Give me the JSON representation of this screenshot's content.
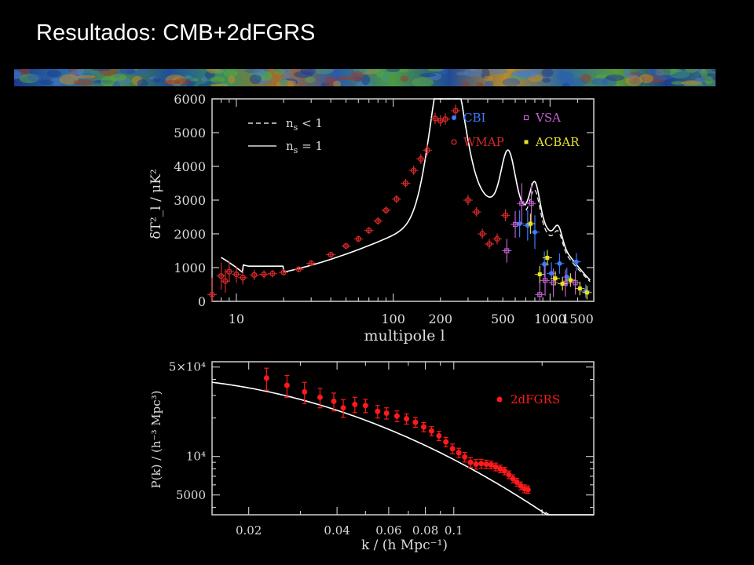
{
  "slide": {
    "title": "Resultados: CMB+2dFGRS"
  },
  "colors": {
    "background": "#000000",
    "axis": "#cfcfcf",
    "model": "#ffffff",
    "cbi": "#3b7bff",
    "wmap": "#d62a2a",
    "vsa": "#c060d0",
    "acbar": "#e8e02a",
    "twodf": "#ff1a1a"
  },
  "chart_data": [
    {
      "type": "scatter",
      "xscale": "log",
      "xlabel": "multipole l",
      "ylabel": "δT²_l / μK²",
      "ylim": [
        0,
        6000
      ],
      "xlim": [
        7,
        1900
      ],
      "xticks": [
        10,
        100,
        200,
        500,
        1000,
        1500
      ],
      "xtick_labels": [
        "10",
        "100",
        "200",
        "500",
        "1000",
        "1500"
      ],
      "yticks": [
        0,
        1000,
        2000,
        3000,
        4000,
        5000,
        6000
      ],
      "ytick_labels": [
        "0",
        "1000",
        "2000",
        "3000",
        "4000",
        "5000",
        "6000"
      ],
      "model_legend": [
        {
          "style": "dashed",
          "label": "n",
          "sub": "s",
          "rel": "< 1"
        },
        {
          "style": "solid",
          "label": "n",
          "sub": "s",
          "rel": "= 1"
        }
      ],
      "legend_placement": "top-right",
      "series": [
        {
          "name": "CBI",
          "marker": "dot",
          "color": "#3b7bff",
          "points": [
            [
              640,
              2300,
              400
            ],
            [
              720,
              2250,
              450
            ],
            [
              800,
              2050,
              500
            ],
            [
              920,
              1100,
              380
            ],
            [
              1020,
              830,
              330
            ],
            [
              1150,
              1120,
              300
            ],
            [
              1280,
              720,
              280
            ],
            [
              1470,
              1170,
              260
            ],
            [
              1690,
              300,
              200
            ]
          ]
        },
        {
          "name": "VSA",
          "marker": "square",
          "color": "#c060d0",
          "points": [
            [
              530,
              1500,
              350
            ],
            [
              600,
              2280,
              400
            ],
            [
              660,
              2900,
              600
            ],
            [
              760,
              2900,
              600
            ],
            [
              860,
              200,
              400
            ],
            [
              930,
              620,
              450
            ],
            [
              1050,
              550,
              420
            ],
            [
              1250,
              540,
              400
            ],
            [
              1450,
              550,
              350
            ]
          ]
        },
        {
          "name": "WMAP",
          "marker": "circle",
          "color": "#d62a2a",
          "points": [
            [
              7,
              200,
              500
            ],
            [
              8,
              750,
              400
            ],
            [
              8.5,
              600,
              350
            ],
            [
              9,
              880,
              300
            ],
            [
              10,
              800,
              250
            ],
            [
              11,
              700,
              200
            ],
            [
              13,
              780,
              150
            ],
            [
              15,
              800,
              120
            ],
            [
              17,
              820,
              110
            ],
            [
              20,
              860,
              100
            ],
            [
              25,
              950,
              90
            ],
            [
              30,
              1130,
              90
            ],
            [
              40,
              1380,
              90
            ],
            [
              50,
              1640,
              90
            ],
            [
              60,
              1850,
              90
            ],
            [
              70,
              2100,
              100
            ],
            [
              80,
              2380,
              110
            ],
            [
              90,
              2700,
              110
            ],
            [
              105,
              3030,
              120
            ],
            [
              120,
              3500,
              130
            ],
            [
              135,
              3880,
              140
            ],
            [
              150,
              4220,
              150
            ],
            [
              165,
              4480,
              160
            ],
            [
              185,
              5420,
              170
            ],
            [
              200,
              5350,
              170
            ],
            [
              215,
              5400,
              170
            ],
            [
              250,
              5650,
              180
            ],
            [
              300,
              3000,
              150
            ],
            [
              340,
              2650,
              140
            ],
            [
              370,
              2000,
              150
            ],
            [
              410,
              1700,
              150
            ],
            [
              460,
              1850,
              160
            ],
            [
              520,
              2550,
              180
            ]
          ]
        },
        {
          "name": "ACBAR",
          "marker": "square-filled",
          "color": "#e8e02a",
          "points": [
            [
              750,
              2300,
              300
            ],
            [
              860,
              800,
              250
            ],
            [
              960,
              1290,
              230
            ],
            [
              1080,
              680,
              210
            ],
            [
              1200,
              520,
              200
            ],
            [
              1350,
              630,
              200
            ],
            [
              1550,
              380,
              200
            ],
            [
              1720,
              260,
              200
            ]
          ]
        }
      ]
    },
    {
      "type": "scatter",
      "xscale": "log",
      "yscale": "log",
      "xlabel": "k / (h Mpc⁻¹)",
      "ylabel": "P(k) / (h⁻³ Mpc³)",
      "xlim": [
        0.015,
        0.3
      ],
      "ylim": [
        3500,
        55000
      ],
      "xticks": [
        0.02,
        0.04,
        0.06,
        0.08,
        0.1
      ],
      "xtick_labels": [
        "0.02",
        "0.04",
        "0.06",
        "0.08",
        "0.1"
      ],
      "yticks": [
        5000,
        10000,
        50000
      ],
      "ytick_labels": [
        "5000",
        "10⁴",
        "5×10⁴"
      ],
      "legend_placement": "top-right",
      "series": [
        {
          "name": "2dFGRS",
          "marker": "dot",
          "color": "#ff1a1a",
          "points": [
            [
              0.023,
              41000,
              8000
            ],
            [
              0.027,
              36000,
              7000
            ],
            [
              0.031,
              32000,
              6000
            ],
            [
              0.035,
              29000,
              5000
            ],
            [
              0.039,
              27000,
              4300
            ],
            [
              0.042,
              24000,
              3800
            ],
            [
              0.046,
              25500,
              3500
            ],
            [
              0.05,
              25000,
              3000
            ],
            [
              0.055,
              22500,
              2500
            ],
            [
              0.059,
              21800,
              2200
            ],
            [
              0.064,
              20700,
              2000
            ],
            [
              0.069,
              19700,
              1800
            ],
            [
              0.074,
              18500,
              1600
            ],
            [
              0.079,
              17000,
              1400
            ],
            [
              0.084,
              15800,
              1300
            ],
            [
              0.089,
              14500,
              1200
            ],
            [
              0.094,
              13000,
              1100
            ],
            [
              0.099,
              11500,
              1000
            ],
            [
              0.104,
              10700,
              900
            ],
            [
              0.109,
              9900,
              850
            ],
            [
              0.114,
              9000,
              800
            ],
            [
              0.119,
              8700,
              750
            ],
            [
              0.124,
              8800,
              700
            ],
            [
              0.129,
              8700,
              650
            ],
            [
              0.134,
              8600,
              600
            ],
            [
              0.139,
              8300,
              580
            ],
            [
              0.144,
              8000,
              550
            ],
            [
              0.149,
              7700,
              520
            ],
            [
              0.154,
              7200,
              500
            ],
            [
              0.159,
              6700,
              480
            ],
            [
              0.164,
              6300,
              450
            ],
            [
              0.169,
              5900,
              420
            ],
            [
              0.174,
              5600,
              400
            ],
            [
              0.179,
              5500,
              380
            ]
          ]
        }
      ]
    }
  ]
}
